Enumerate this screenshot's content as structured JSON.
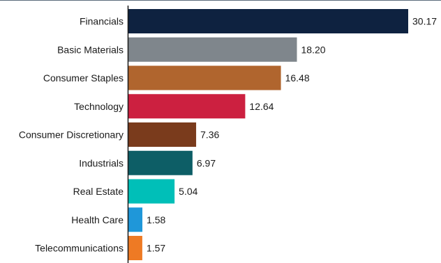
{
  "chart_data": {
    "type": "bar",
    "orientation": "horizontal",
    "title": "",
    "xlabel": "",
    "ylabel": "",
    "xlim": [
      0,
      30.17
    ],
    "grid": false,
    "legend": "none",
    "categories": [
      "Financials",
      "Basic Materials",
      "Consumer Staples",
      "Technology",
      "Consumer Discretionary",
      "Industrials",
      "Real Estate",
      "Health Care",
      "Telecommunications"
    ],
    "values": [
      30.17,
      18.2,
      16.48,
      12.64,
      7.36,
      6.97,
      5.04,
      1.58,
      1.57
    ],
    "value_labels": [
      "30.17",
      "18.20",
      "16.48",
      "12.64",
      "7.36",
      "6.97",
      "5.04",
      "1.58",
      "1.57"
    ],
    "colors": [
      "#0e2240",
      "#7f868c",
      "#b0652e",
      "#cc2040",
      "#7a3b1c",
      "#0d5e66",
      "#00bfb8",
      "#1f97d9",
      "#ee7a24"
    ],
    "axis_color": "#1a1a1a",
    "top_rule_color": "#5a6a7a"
  }
}
